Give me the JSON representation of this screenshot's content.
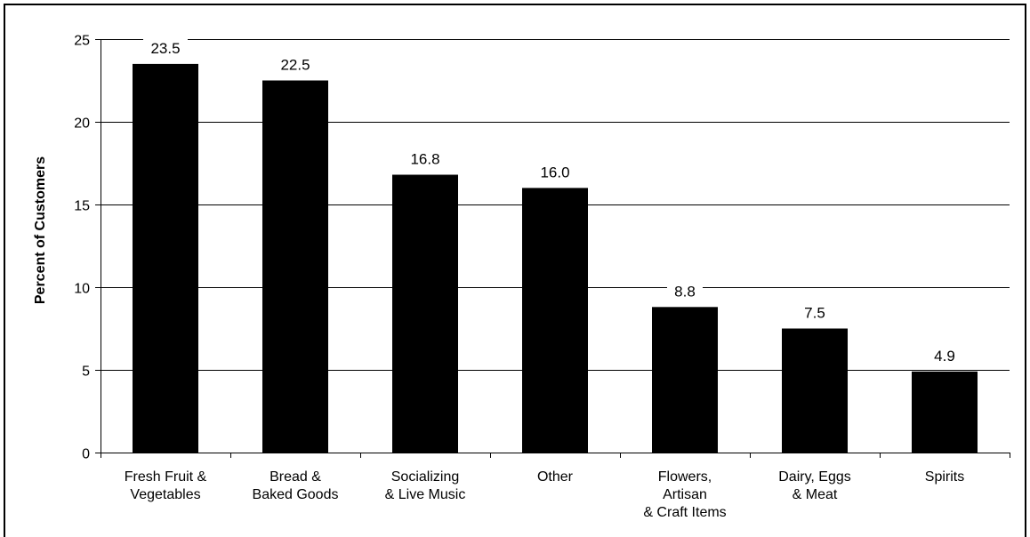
{
  "chart_data": {
    "type": "bar",
    "title": "",
    "xlabel": "",
    "ylabel": "Percent of Customers",
    "ylim": [
      0,
      25
    ],
    "yticks": [
      0,
      5,
      10,
      15,
      20,
      25
    ],
    "grid": true,
    "categories": [
      [
        "Fresh Fruit &",
        "Vegetables"
      ],
      [
        "Bread &",
        "Baked Goods"
      ],
      [
        "Socializing",
        "& Live Music"
      ],
      [
        "Other"
      ],
      [
        "Flowers,",
        "Artisan",
        "& Craft Items"
      ],
      [
        "Dairy, Eggs",
        "& Meat"
      ],
      [
        "Spirits"
      ]
    ],
    "values": [
      23.5,
      22.5,
      16.8,
      16.0,
      8.8,
      7.5,
      4.9
    ],
    "data_labels": [
      "23.5",
      "22.5",
      "16.8",
      "16.0",
      "8.8",
      "7.5",
      "4.9"
    ],
    "colors": {
      "bar": "#000000",
      "grid": "#000000",
      "background": "#ffffff"
    }
  }
}
